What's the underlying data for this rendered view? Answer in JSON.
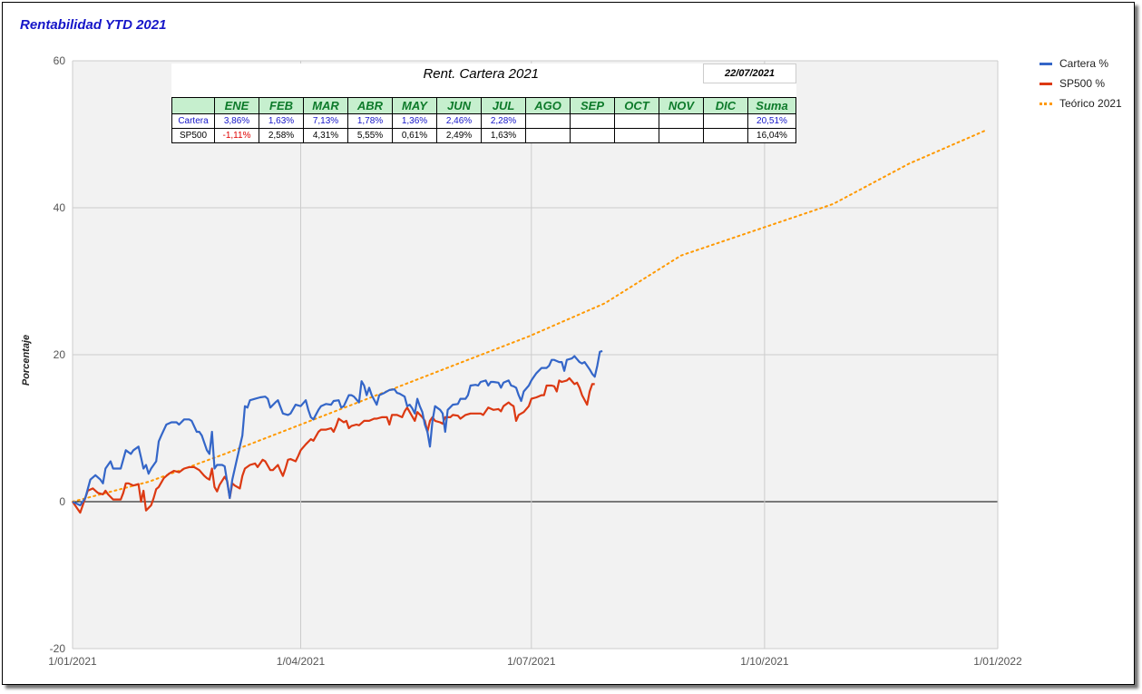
{
  "title": "Rentabilidad YTD 2021",
  "colors": {
    "cartera": "#3466c8",
    "sp500": "#dc3912",
    "teorico": "#ff9900",
    "title": "#1515c8"
  },
  "table": {
    "title": "Rent. Cartera 2021",
    "date": "22/07/2021",
    "months": [
      "ENE",
      "FEB",
      "MAR",
      "ABR",
      "MAY",
      "JUN",
      "JUL",
      "AGO",
      "SEP",
      "OCT",
      "NOV",
      "DIC",
      "Suma"
    ],
    "rows": [
      {
        "label": "Cartera",
        "values": [
          "3,86%",
          "1,63%",
          "7,13%",
          "1,78%",
          "1,36%",
          "2,46%",
          "2,28%",
          "",
          "",
          "",
          "",
          "",
          "20,51%"
        ]
      },
      {
        "label": "SP500",
        "values": [
          "-1,11%",
          "2,58%",
          "4,31%",
          "5,55%",
          "0,61%",
          "2,49%",
          "1,63%",
          "",
          "",
          "",
          "",
          "",
          "16,04%"
        ]
      }
    ]
  },
  "chart_data": {
    "type": "line",
    "title": "Rentabilidad YTD 2021",
    "ylabel": "Porcentaje",
    "xlabel": "",
    "ylim": [
      -20,
      60
    ],
    "yticks": [
      "60",
      "40",
      "20",
      "0",
      "-20"
    ],
    "xticks": [
      "1/01/2021",
      "1/04/2021",
      "1/07/2021",
      "1/10/2021",
      "1/01/2022"
    ],
    "xrange_days": [
      0,
      365
    ],
    "legend": [
      "Cartera %",
      "SP500 %",
      "Teórico 2021"
    ],
    "legend_position": "right",
    "grid": true,
    "series": [
      {
        "name": "Cartera %",
        "style": "solid",
        "points": [
          [
            0,
            0
          ],
          [
            3,
            -0.5
          ],
          [
            5,
            0.5
          ],
          [
            7,
            3
          ],
          [
            9,
            3.6
          ],
          [
            11,
            3
          ],
          [
            12,
            2.5
          ],
          [
            13,
            4.5
          ],
          [
            15,
            5.5
          ],
          [
            16,
            4.5
          ],
          [
            18,
            4.5
          ],
          [
            19,
            4.5
          ],
          [
            21,
            7
          ],
          [
            23,
            6.5
          ],
          [
            24,
            7
          ],
          [
            26,
            7.5
          ],
          [
            27,
            6
          ],
          [
            28,
            4.5
          ],
          [
            29,
            5
          ],
          [
            30,
            3.8
          ],
          [
            31,
            4.5
          ],
          [
            33,
            5.5
          ],
          [
            34,
            8.2
          ],
          [
            35,
            9
          ],
          [
            37,
            10.5
          ],
          [
            39,
            10.8
          ],
          [
            41,
            10.8
          ],
          [
            42,
            10.5
          ],
          [
            44,
            11.2
          ],
          [
            46,
            11.2
          ],
          [
            47,
            11
          ],
          [
            49,
            9.5
          ],
          [
            50,
            9.5
          ],
          [
            51,
            9
          ],
          [
            53,
            7
          ],
          [
            54,
            6.5
          ],
          [
            55,
            9.5
          ],
          [
            56,
            4.5
          ],
          [
            57,
            5
          ],
          [
            59,
            5
          ],
          [
            60,
            4.8
          ],
          [
            62,
            0.5
          ],
          [
            63,
            3
          ],
          [
            65,
            6
          ],
          [
            67,
            9
          ],
          [
            68,
            13
          ],
          [
            69,
            12.8
          ],
          [
            70,
            13.8
          ],
          [
            72,
            14
          ],
          [
            74,
            14.2
          ],
          [
            76,
            14.3
          ],
          [
            77,
            14
          ],
          [
            78,
            12.8
          ],
          [
            80,
            13.5
          ],
          [
            81,
            13.8
          ],
          [
            83,
            12
          ],
          [
            85,
            11.8
          ],
          [
            86,
            12
          ],
          [
            88,
            13.2
          ],
          [
            90,
            13
          ],
          [
            92,
            13.8
          ],
          [
            93,
            12.5
          ],
          [
            94,
            11.5
          ],
          [
            95,
            11.2
          ],
          [
            97,
            12.5
          ],
          [
            98,
            13
          ],
          [
            100,
            13.3
          ],
          [
            102,
            13.2
          ],
          [
            103,
            13.7
          ],
          [
            105,
            13.8
          ],
          [
            106,
            12.8
          ],
          [
            107,
            13
          ],
          [
            109,
            14.5
          ],
          [
            110,
            14.5
          ],
          [
            111,
            14.3
          ],
          [
            113,
            13.5
          ],
          [
            114,
            16.4
          ],
          [
            115,
            15.8
          ],
          [
            116,
            14.5
          ],
          [
            117,
            15.5
          ],
          [
            118,
            14.5
          ],
          [
            120,
            13.2
          ],
          [
            121,
            14.5
          ],
          [
            123,
            14.8
          ],
          [
            125,
            15.2
          ],
          [
            127,
            15.3
          ],
          [
            128,
            14.8
          ],
          [
            129,
            14.7
          ],
          [
            131,
            14.3
          ],
          [
            132,
            13
          ],
          [
            133,
            13.2
          ],
          [
            134,
            12.7
          ],
          [
            135,
            12
          ],
          [
            136,
            14
          ],
          [
            137,
            13
          ],
          [
            138,
            12.2
          ],
          [
            139,
            10.5
          ],
          [
            140,
            9.5
          ],
          [
            141,
            7.5
          ],
          [
            142,
            11
          ],
          [
            143,
            13
          ],
          [
            145,
            12.5
          ],
          [
            146,
            12
          ],
          [
            147,
            9.5
          ],
          [
            148,
            12.5
          ],
          [
            150,
            13.2
          ],
          [
            152,
            13.3
          ],
          [
            153,
            14
          ],
          [
            155,
            14
          ],
          [
            156,
            14.5
          ],
          [
            157,
            15.8
          ],
          [
            159,
            15.9
          ],
          [
            160,
            15.8
          ],
          [
            161,
            16.3
          ],
          [
            163,
            16.5
          ],
          [
            164,
            15.8
          ],
          [
            165,
            16.3
          ],
          [
            166,
            16.3
          ],
          [
            168,
            16.2
          ],
          [
            169,
            15.5
          ],
          [
            170,
            16.2
          ],
          [
            172,
            16.5
          ],
          [
            173,
            15.8
          ],
          [
            174,
            15.7
          ],
          [
            175,
            15.5
          ],
          [
            176,
            14.5
          ],
          [
            177,
            13.7
          ],
          [
            178,
            15
          ],
          [
            180,
            15.8
          ],
          [
            181,
            16.5
          ],
          [
            182,
            17
          ],
          [
            183,
            17.5
          ],
          [
            185,
            18.2
          ],
          [
            187,
            18.2
          ],
          [
            188,
            18.5
          ],
          [
            189,
            19.3
          ],
          [
            190,
            19.3
          ],
          [
            192,
            19
          ],
          [
            193,
            19
          ],
          [
            194,
            17.8
          ],
          [
            195,
            19.3
          ],
          [
            197,
            19.5
          ],
          [
            198,
            19.8
          ],
          [
            200,
            19
          ],
          [
            201,
            18.8
          ],
          [
            202,
            19
          ],
          [
            204,
            18
          ],
          [
            205,
            17.4
          ],
          [
            206,
            17
          ],
          [
            207,
            18.5
          ],
          [
            208,
            20.4
          ],
          [
            209,
            20.5
          ]
        ]
      },
      {
        "name": "SP500 %",
        "style": "solid",
        "points": [
          [
            0,
            0
          ],
          [
            3,
            -1.5
          ],
          [
            4,
            -0.5
          ],
          [
            6,
            1.5
          ],
          [
            8,
            1.8
          ],
          [
            10,
            1.2
          ],
          [
            12,
            1
          ],
          [
            13,
            1.5
          ],
          [
            14,
            1
          ],
          [
            16,
            0.3
          ],
          [
            19,
            0.3
          ],
          [
            20,
            1.2
          ],
          [
            21,
            2.5
          ],
          [
            22,
            2.5
          ],
          [
            24,
            2.2
          ],
          [
            26,
            2.4
          ],
          [
            27,
            0
          ],
          [
            28,
            1.5
          ],
          [
            29,
            -1.2
          ],
          [
            31,
            -0.5
          ],
          [
            32,
            0.5
          ],
          [
            33,
            1.7
          ],
          [
            34,
            2
          ],
          [
            36,
            3.2
          ],
          [
            38,
            3.8
          ],
          [
            40,
            4.2
          ],
          [
            42,
            4
          ],
          [
            44,
            4.5
          ],
          [
            46,
            4.7
          ],
          [
            48,
            4.7
          ],
          [
            50,
            4.3
          ],
          [
            52,
            3.5
          ],
          [
            53,
            3.2
          ],
          [
            54,
            3
          ],
          [
            55,
            4.5
          ],
          [
            56,
            2
          ],
          [
            57,
            1.4
          ],
          [
            58,
            2.3
          ],
          [
            60,
            3.4
          ],
          [
            61,
            2.8
          ],
          [
            62,
            0.5
          ],
          [
            63,
            2.5
          ],
          [
            64,
            2.2
          ],
          [
            66,
            1.8
          ],
          [
            67,
            3.5
          ],
          [
            68,
            4.5
          ],
          [
            70,
            5
          ],
          [
            72,
            5.2
          ],
          [
            73,
            4.7
          ],
          [
            75,
            5.7
          ],
          [
            76,
            5.5
          ],
          [
            78,
            4.3
          ],
          [
            79,
            4.3
          ],
          [
            81,
            5
          ],
          [
            82,
            4.2
          ],
          [
            83,
            3.5
          ],
          [
            84,
            4.5
          ],
          [
            85,
            5.7
          ],
          [
            86,
            5.8
          ],
          [
            88,
            5.5
          ],
          [
            89,
            6.2
          ],
          [
            90,
            7
          ],
          [
            92,
            7.8
          ],
          [
            94,
            8.5
          ],
          [
            95,
            8.3
          ],
          [
            97,
            9.5
          ],
          [
            98,
            9.8
          ],
          [
            100,
            9.8
          ],
          [
            102,
            10
          ],
          [
            103,
            9.5
          ],
          [
            104,
            10.3
          ],
          [
            105,
            11.3
          ],
          [
            107,
            10.8
          ],
          [
            108,
            11
          ],
          [
            109,
            10
          ],
          [
            110,
            10.3
          ],
          [
            112,
            10.5
          ],
          [
            113,
            10.4
          ],
          [
            115,
            11
          ],
          [
            117,
            11
          ],
          [
            119,
            11.3
          ],
          [
            120,
            11.3
          ],
          [
            122,
            11.5
          ],
          [
            124,
            11.5
          ],
          [
            125,
            10.5
          ],
          [
            126,
            11.8
          ],
          [
            128,
            11.8
          ],
          [
            130,
            11.5
          ],
          [
            131,
            12.3
          ],
          [
            132,
            12.8
          ],
          [
            133,
            12.2
          ],
          [
            135,
            11
          ],
          [
            136,
            12.2
          ],
          [
            138,
            11.5
          ],
          [
            139,
            11
          ],
          [
            140,
            9.5
          ],
          [
            141,
            11
          ],
          [
            142,
            11.5
          ],
          [
            143,
            11
          ],
          [
            145,
            10.8
          ],
          [
            146,
            10.6
          ],
          [
            147,
            11.5
          ],
          [
            149,
            11.5
          ],
          [
            150,
            11.8
          ],
          [
            152,
            11.7
          ],
          [
            153,
            11.3
          ],
          [
            155,
            11.8
          ],
          [
            157,
            12
          ],
          [
            159,
            12
          ],
          [
            161,
            12
          ],
          [
            162,
            11.8
          ],
          [
            164,
            12.8
          ],
          [
            166,
            12.5
          ],
          [
            168,
            12.6
          ],
          [
            169,
            12.3
          ],
          [
            170,
            13
          ],
          [
            172,
            13.5
          ],
          [
            173,
            13.2
          ],
          [
            174,
            13
          ],
          [
            175,
            11
          ],
          [
            176,
            11.8
          ],
          [
            178,
            12.2
          ],
          [
            180,
            13
          ],
          [
            181,
            14
          ],
          [
            183,
            14.2
          ],
          [
            185,
            14.5
          ],
          [
            186,
            14.5
          ],
          [
            187,
            15.8
          ],
          [
            189,
            15.8
          ],
          [
            190,
            15.7
          ],
          [
            191,
            15
          ],
          [
            192,
            16.5
          ],
          [
            193,
            16.3
          ],
          [
            195,
            16.5
          ],
          [
            196,
            16.8
          ],
          [
            198,
            16
          ],
          [
            199,
            16.2
          ],
          [
            200,
            15.5
          ],
          [
            201,
            14.5
          ],
          [
            203,
            13.2
          ],
          [
            204,
            15
          ],
          [
            205,
            16
          ],
          [
            206,
            16
          ]
        ]
      },
      {
        "name": "Teórico 2021",
        "style": "dotted",
        "points": [
          [
            0,
            0
          ],
          [
            30,
            2.7
          ],
          [
            60,
            6.5
          ],
          [
            90,
            10.5
          ],
          [
            120,
            14.5
          ],
          [
            150,
            18.5
          ],
          [
            180,
            22.5
          ],
          [
            210,
            27
          ],
          [
            240,
            33.5
          ],
          [
            270,
            37
          ],
          [
            300,
            40.5
          ],
          [
            330,
            46
          ],
          [
            360,
            50.5
          ]
        ]
      }
    ]
  }
}
